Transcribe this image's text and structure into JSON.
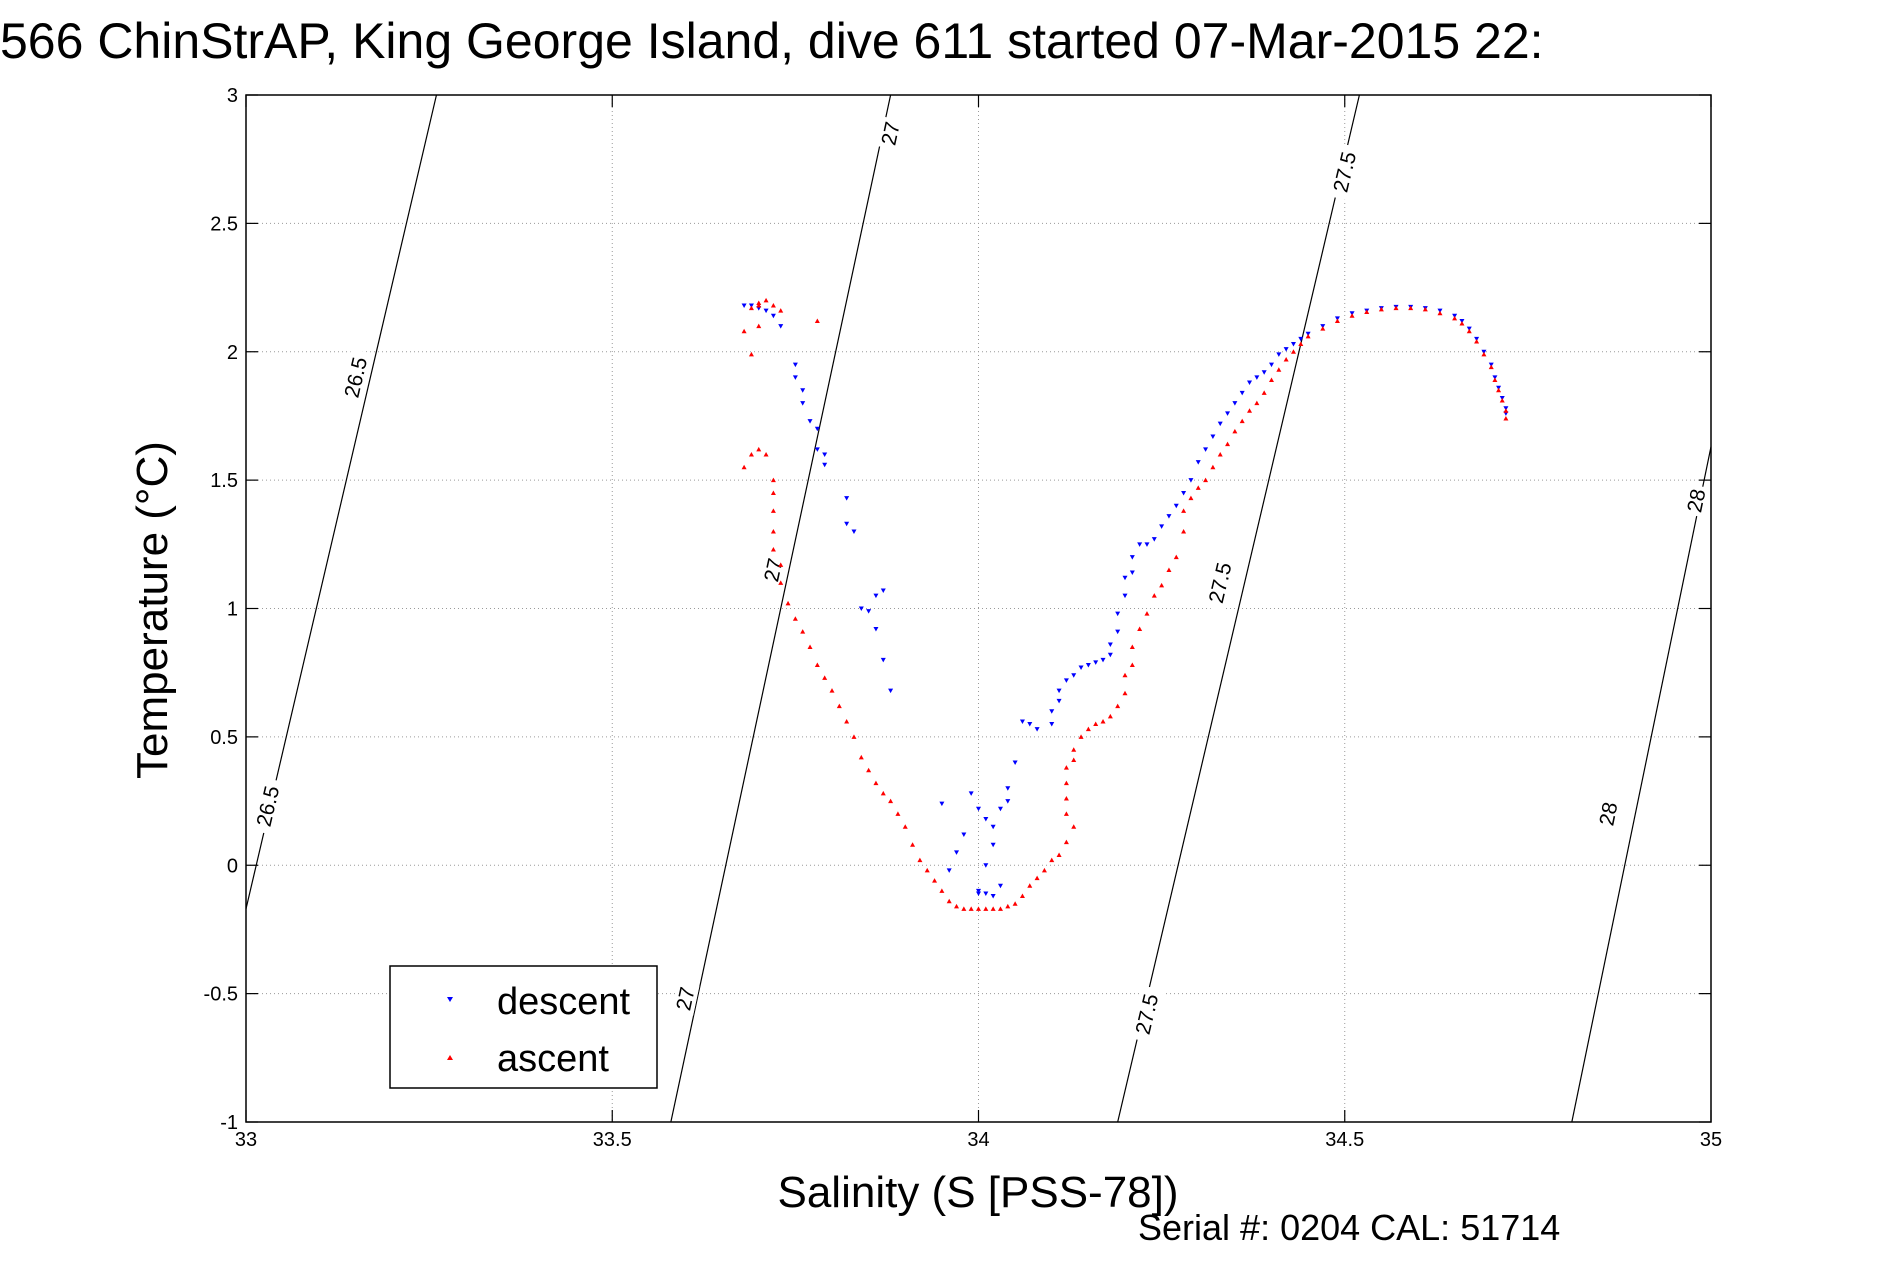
{
  "title": "566 ChinStrAP, King George Island, dive 611 started 07-Mar-2015 22:",
  "footer": "Serial #: 0204  CAL: 51714",
  "chart_data": {
    "type": "scatter",
    "xlabel": "Salinity (S [PSS-78])",
    "ylabel": "Temperature (°C)",
    "xlim": [
      33,
      35
    ],
    "ylim": [
      -1,
      3
    ],
    "xticks": [
      33,
      33.5,
      34,
      34.5,
      35
    ],
    "yticks": [
      -1,
      -0.5,
      0,
      0.5,
      1,
      1.5,
      2,
      2.5,
      3
    ],
    "xtick_labels": [
      "33",
      "33.5",
      "34",
      "34.5",
      "35"
    ],
    "ytick_labels": [
      "-1",
      "-0.5",
      "0",
      "0.5",
      "1",
      "1.5",
      "2",
      "2.5",
      "3"
    ],
    "grid": true,
    "legend_position": "bottom-left",
    "density_contours": [
      {
        "label": "26.5",
        "points": [
          [
            33.0,
            -0.17
          ],
          [
            33.26,
            3.0
          ]
        ]
      },
      {
        "label": "27",
        "points": [
          [
            33.58,
            -1.0
          ],
          [
            33.88,
            3.0
          ]
        ]
      },
      {
        "label": "27.5",
        "points": [
          [
            34.19,
            -1.0
          ],
          [
            34.52,
            3.0
          ]
        ]
      },
      {
        "label": "28",
        "points": [
          [
            34.81,
            -1.0
          ],
          [
            35.0,
            1.63
          ]
        ]
      }
    ],
    "contour_label_positions": [
      {
        "label": "26.5",
        "x": 33.15,
        "y": 1.9
      },
      {
        "label": "26.5",
        "x": 33.03,
        "y": 0.23
      },
      {
        "label": "27",
        "x": 33.88,
        "y": 2.85
      },
      {
        "label": "27",
        "x": 33.72,
        "y": 1.15
      },
      {
        "label": "27",
        "x": 33.6,
        "y": -0.52
      },
      {
        "label": "27.5",
        "x": 34.5,
        "y": 2.7
      },
      {
        "label": "27.5",
        "x": 34.33,
        "y": 1.1
      },
      {
        "label": "27.5",
        "x": 34.23,
        "y": -0.58
      },
      {
        "label": "28",
        "x": 34.98,
        "y": 1.42
      },
      {
        "label": "28",
        "x": 34.86,
        "y": 0.2
      }
    ],
    "series": [
      {
        "name": "descent",
        "color": "#0000ff",
        "marker": "triangle-down",
        "points": [
          [
            34.72,
            1.76
          ],
          [
            34.72,
            1.78
          ],
          [
            34.715,
            1.82
          ],
          [
            34.71,
            1.86
          ],
          [
            34.705,
            1.9
          ],
          [
            34.7,
            1.95
          ],
          [
            34.69,
            2.0
          ],
          [
            34.68,
            2.05
          ],
          [
            34.67,
            2.09
          ],
          [
            34.66,
            2.12
          ],
          [
            34.65,
            2.14
          ],
          [
            34.63,
            2.16
          ],
          [
            34.61,
            2.17
          ],
          [
            34.59,
            2.175
          ],
          [
            34.57,
            2.175
          ],
          [
            34.55,
            2.17
          ],
          [
            34.53,
            2.16
          ],
          [
            34.51,
            2.15
          ],
          [
            34.49,
            2.13
          ],
          [
            34.47,
            2.1
          ],
          [
            34.45,
            2.07
          ],
          [
            34.44,
            2.05
          ],
          [
            34.43,
            2.03
          ],
          [
            34.42,
            2.01
          ],
          [
            34.41,
            1.99
          ],
          [
            34.4,
            1.95
          ],
          [
            34.39,
            1.92
          ],
          [
            34.38,
            1.9
          ],
          [
            34.37,
            1.88
          ],
          [
            34.36,
            1.84
          ],
          [
            34.35,
            1.8
          ],
          [
            34.34,
            1.76
          ],
          [
            34.33,
            1.72
          ],
          [
            34.32,
            1.67
          ],
          [
            34.31,
            1.62
          ],
          [
            34.3,
            1.57
          ],
          [
            34.29,
            1.5
          ],
          [
            34.28,
            1.45
          ],
          [
            34.27,
            1.4
          ],
          [
            34.26,
            1.36
          ],
          [
            34.25,
            1.32
          ],
          [
            34.24,
            1.27
          ],
          [
            34.23,
            1.25
          ],
          [
            34.22,
            1.25
          ],
          [
            34.21,
            1.2
          ],
          [
            34.21,
            1.14
          ],
          [
            34.2,
            1.12
          ],
          [
            34.2,
            1.05
          ],
          [
            34.19,
            0.98
          ],
          [
            34.19,
            0.91
          ],
          [
            34.18,
            0.86
          ],
          [
            34.18,
            0.82
          ],
          [
            34.17,
            0.8
          ],
          [
            34.16,
            0.79
          ],
          [
            34.15,
            0.78
          ],
          [
            34.14,
            0.77
          ],
          [
            34.13,
            0.74
          ],
          [
            34.12,
            0.72
          ],
          [
            34.11,
            0.68
          ],
          [
            34.11,
            0.64
          ],
          [
            34.1,
            0.6
          ],
          [
            34.1,
            0.55
          ],
          [
            34.08,
            0.53
          ],
          [
            34.07,
            0.55
          ],
          [
            34.06,
            0.56
          ],
          [
            34.05,
            0.4
          ],
          [
            34.04,
            0.3
          ],
          [
            34.04,
            0.25
          ],
          [
            34.03,
            0.22
          ],
          [
            34.02,
            0.15
          ],
          [
            34.02,
            0.08
          ],
          [
            34.01,
            0.0
          ],
          [
            34.0,
            -0.1
          ],
          [
            34.0,
            -0.11
          ],
          [
            34.01,
            -0.11
          ],
          [
            34.02,
            -0.12
          ],
          [
            34.03,
            -0.08
          ],
          [
            34.01,
            0.18
          ],
          [
            34.0,
            0.22
          ],
          [
            33.99,
            0.28
          ],
          [
            33.98,
            0.12
          ],
          [
            33.97,
            0.05
          ],
          [
            33.96,
            -0.02
          ],
          [
            33.95,
            0.24
          ],
          [
            33.88,
            0.68
          ],
          [
            33.87,
            0.8
          ],
          [
            33.86,
            0.92
          ],
          [
            33.87,
            1.07
          ],
          [
            33.86,
            1.05
          ],
          [
            33.85,
            0.99
          ],
          [
            33.84,
            1.0
          ],
          [
            33.83,
            1.3
          ],
          [
            33.82,
            1.33
          ],
          [
            33.82,
            1.43
          ],
          [
            33.79,
            1.56
          ],
          [
            33.79,
            1.6
          ],
          [
            33.78,
            1.62
          ],
          [
            33.78,
            1.7
          ],
          [
            33.77,
            1.73
          ],
          [
            33.76,
            1.8
          ],
          [
            33.76,
            1.85
          ],
          [
            33.75,
            1.9
          ],
          [
            33.75,
            1.95
          ],
          [
            33.73,
            2.1
          ],
          [
            33.72,
            2.14
          ],
          [
            33.71,
            2.16
          ],
          [
            33.7,
            2.17
          ],
          [
            33.69,
            2.18
          ],
          [
            33.68,
            2.18
          ]
        ]
      },
      {
        "name": "ascent",
        "color": "#ff0000",
        "marker": "triangle-up",
        "points": [
          [
            34.72,
            1.74
          ],
          [
            34.72,
            1.77
          ],
          [
            34.715,
            1.81
          ],
          [
            34.71,
            1.85
          ],
          [
            34.705,
            1.89
          ],
          [
            34.7,
            1.94
          ],
          [
            34.69,
            1.99
          ],
          [
            34.68,
            2.04
          ],
          [
            34.67,
            2.08
          ],
          [
            34.66,
            2.11
          ],
          [
            34.65,
            2.13
          ],
          [
            34.63,
            2.15
          ],
          [
            34.61,
            2.165
          ],
          [
            34.59,
            2.17
          ],
          [
            34.57,
            2.17
          ],
          [
            34.55,
            2.165
          ],
          [
            34.53,
            2.155
          ],
          [
            34.51,
            2.14
          ],
          [
            34.49,
            2.12
          ],
          [
            34.47,
            2.09
          ],
          [
            34.45,
            2.06
          ],
          [
            34.44,
            2.03
          ],
          [
            34.43,
            2.0
          ],
          [
            34.42,
            1.97
          ],
          [
            34.41,
            1.93
          ],
          [
            34.4,
            1.89
          ],
          [
            34.39,
            1.84
          ],
          [
            34.38,
            1.8
          ],
          [
            34.37,
            1.77
          ],
          [
            34.36,
            1.73
          ],
          [
            34.35,
            1.69
          ],
          [
            34.34,
            1.64
          ],
          [
            34.33,
            1.6
          ],
          [
            34.32,
            1.55
          ],
          [
            34.31,
            1.5
          ],
          [
            34.3,
            1.47
          ],
          [
            34.29,
            1.43
          ],
          [
            34.28,
            1.38
          ],
          [
            34.28,
            1.3
          ],
          [
            34.27,
            1.2
          ],
          [
            34.26,
            1.15
          ],
          [
            34.25,
            1.09
          ],
          [
            34.24,
            1.05
          ],
          [
            34.23,
            0.98
          ],
          [
            34.22,
            0.92
          ],
          [
            34.21,
            0.85
          ],
          [
            34.21,
            0.78
          ],
          [
            34.2,
            0.74
          ],
          [
            34.2,
            0.67
          ],
          [
            34.19,
            0.62
          ],
          [
            34.18,
            0.58
          ],
          [
            34.17,
            0.56
          ],
          [
            34.16,
            0.55
          ],
          [
            34.15,
            0.53
          ],
          [
            34.14,
            0.5
          ],
          [
            34.13,
            0.45
          ],
          [
            34.13,
            0.41
          ],
          [
            34.12,
            0.38
          ],
          [
            34.12,
            0.32
          ],
          [
            34.12,
            0.26
          ],
          [
            34.12,
            0.2
          ],
          [
            34.13,
            0.15
          ],
          [
            34.12,
            0.09
          ],
          [
            34.11,
            0.04
          ],
          [
            34.1,
            0.02
          ],
          [
            34.09,
            -0.02
          ],
          [
            34.08,
            -0.05
          ],
          [
            34.07,
            -0.08
          ],
          [
            34.06,
            -0.12
          ],
          [
            34.05,
            -0.15
          ],
          [
            34.04,
            -0.16
          ],
          [
            34.03,
            -0.17
          ],
          [
            34.02,
            -0.17
          ],
          [
            34.01,
            -0.17
          ],
          [
            34.0,
            -0.17
          ],
          [
            33.99,
            -0.17
          ],
          [
            33.98,
            -0.17
          ],
          [
            33.97,
            -0.16
          ],
          [
            33.96,
            -0.14
          ],
          [
            33.95,
            -0.1
          ],
          [
            33.94,
            -0.06
          ],
          [
            33.93,
            -0.02
          ],
          [
            33.92,
            0.02
          ],
          [
            33.91,
            0.08
          ],
          [
            33.9,
            0.15
          ],
          [
            33.89,
            0.2
          ],
          [
            33.88,
            0.25
          ],
          [
            33.87,
            0.28
          ],
          [
            33.86,
            0.32
          ],
          [
            33.85,
            0.37
          ],
          [
            33.84,
            0.42
          ],
          [
            33.83,
            0.5
          ],
          [
            33.82,
            0.56
          ],
          [
            33.81,
            0.62
          ],
          [
            33.8,
            0.68
          ],
          [
            33.79,
            0.73
          ],
          [
            33.78,
            0.78
          ],
          [
            33.77,
            0.85
          ],
          [
            33.76,
            0.91
          ],
          [
            33.75,
            0.96
          ],
          [
            33.74,
            1.02
          ],
          [
            33.73,
            1.1
          ],
          [
            33.73,
            1.17
          ],
          [
            33.72,
            1.23
          ],
          [
            33.72,
            1.3
          ],
          [
            33.72,
            1.38
          ],
          [
            33.72,
            1.45
          ],
          [
            33.72,
            1.5
          ],
          [
            33.71,
            1.6
          ],
          [
            33.7,
            1.62
          ],
          [
            33.69,
            1.6
          ],
          [
            33.68,
            1.55
          ],
          [
            33.69,
            1.99
          ],
          [
            33.7,
            2.1
          ],
          [
            33.68,
            2.08
          ],
          [
            33.69,
            2.17
          ],
          [
            33.7,
            2.18
          ],
          [
            33.7,
            2.19
          ],
          [
            33.71,
            2.2
          ],
          [
            33.72,
            2.18
          ],
          [
            33.73,
            2.16
          ],
          [
            33.78,
            2.12
          ]
        ]
      }
    ]
  }
}
